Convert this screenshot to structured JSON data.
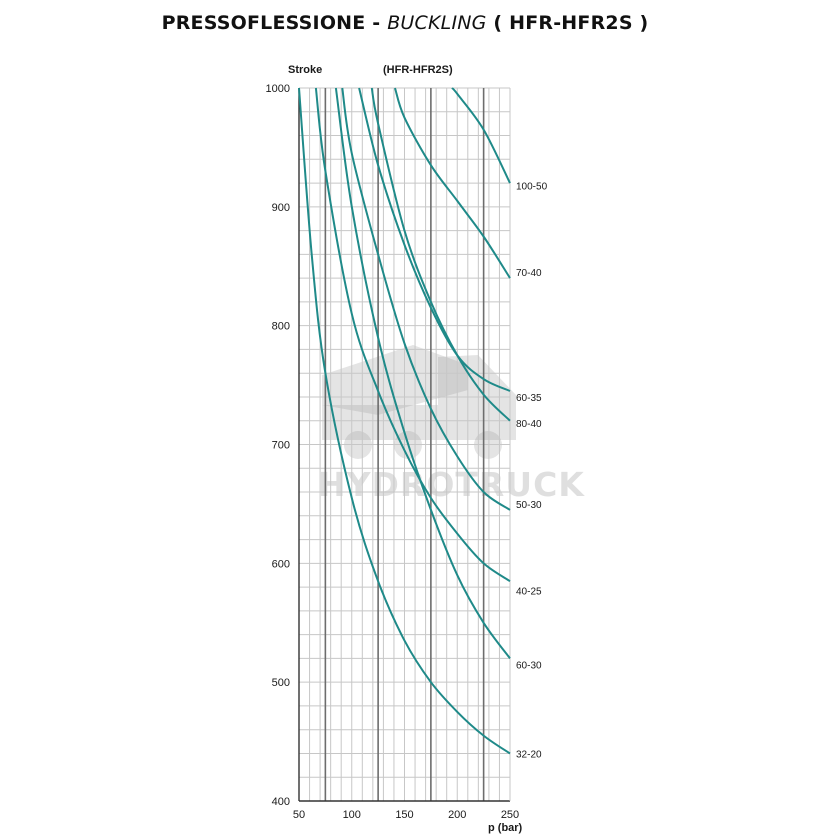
{
  "header": {
    "title_part1": "PRESSOFLESSIONE - ",
    "title_italic": "BUCKLING",
    "title_part2": " ( HFR-HFR2S )"
  },
  "watermark": {
    "text": "HYDROTRUCK"
  },
  "colors": {
    "curve": "#1f8a89",
    "grid_minor": "#c7c7c7",
    "grid_major": "#6d6d6d",
    "axis": "#333333"
  },
  "chart_data": {
    "type": "line",
    "title": "(HFR-HFR2S)",
    "xlabel": "p (bar)",
    "ylabel": "Stroke",
    "xlim": [
      50,
      250
    ],
    "ylim": [
      400,
      1000
    ],
    "x_ticks": [
      50,
      100,
      150,
      200,
      250
    ],
    "y_ticks": [
      400,
      500,
      600,
      700,
      800,
      900,
      1000
    ],
    "grid": true,
    "series": [
      {
        "name": "32-20",
        "points": [
          [
            50,
            1000
          ],
          [
            62,
            860
          ],
          [
            75,
            760
          ],
          [
            100,
            655
          ],
          [
            125,
            585
          ],
          [
            150,
            535
          ],
          [
            175,
            500
          ],
          [
            200,
            475
          ],
          [
            225,
            455
          ],
          [
            250,
            440
          ]
        ]
      },
      {
        "name": "60-30",
        "points": [
          [
            85,
            1000
          ],
          [
            100,
            900
          ],
          [
            125,
            790
          ],
          [
            150,
            710
          ],
          [
            175,
            645
          ],
          [
            200,
            590
          ],
          [
            225,
            550
          ],
          [
            250,
            520
          ]
        ]
      },
      {
        "name": "40-25",
        "points": [
          [
            66,
            1000
          ],
          [
            75,
            930
          ],
          [
            100,
            810
          ],
          [
            125,
            745
          ],
          [
            150,
            695
          ],
          [
            175,
            655
          ],
          [
            200,
            625
          ],
          [
            225,
            600
          ],
          [
            250,
            585
          ]
        ]
      },
      {
        "name": "50-30",
        "points": [
          [
            91,
            1000
          ],
          [
            100,
            945
          ],
          [
            125,
            860
          ],
          [
            150,
            785
          ],
          [
            175,
            730
          ],
          [
            200,
            690
          ],
          [
            225,
            660
          ],
          [
            250,
            645
          ]
        ]
      },
      {
        "name": "80-40",
        "points": [
          [
            119,
            1000
          ],
          [
            125,
            970
          ],
          [
            150,
            880
          ],
          [
            175,
            820
          ],
          [
            200,
            775
          ],
          [
            225,
            742
          ],
          [
            250,
            720
          ]
        ]
      },
      {
        "name": "60-35",
        "points": [
          [
            107,
            1000
          ],
          [
            125,
            935
          ],
          [
            150,
            868
          ],
          [
            175,
            815
          ],
          [
            200,
            775
          ],
          [
            225,
            755
          ],
          [
            250,
            745
          ]
        ]
      },
      {
        "name": "70-40",
        "points": [
          [
            141,
            1000
          ],
          [
            150,
            975
          ],
          [
            175,
            935
          ],
          [
            200,
            905
          ],
          [
            225,
            875
          ],
          [
            250,
            840
          ]
        ]
      },
      {
        "name": "100-50",
        "points": [
          [
            195,
            1000
          ],
          [
            200,
            995
          ],
          [
            225,
            965
          ],
          [
            250,
            920
          ]
        ]
      }
    ],
    "label_values": {
      "32-20": 440,
      "60-30": 515,
      "40-25": 577,
      "50-30": 650,
      "80-40": 718,
      "60-35": 740,
      "70-40": 845,
      "100-50": 918
    }
  }
}
